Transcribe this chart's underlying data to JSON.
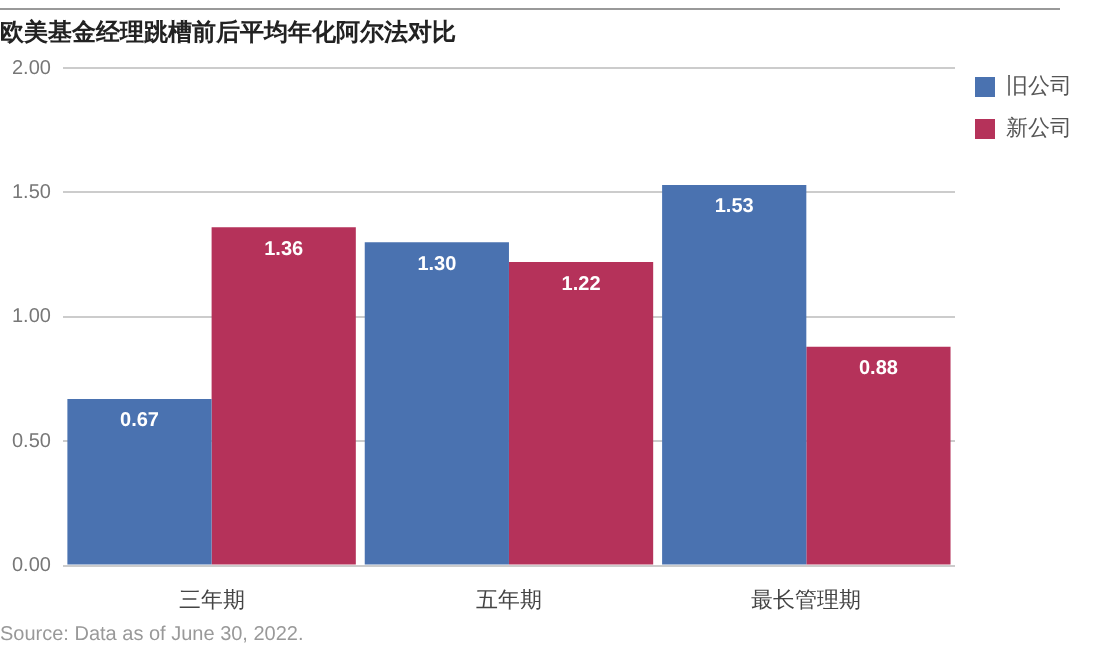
{
  "chart_data": {
    "type": "bar",
    "title": "欧美基金经理跳槽前后平均年化阿尔法对比",
    "categories": [
      "三年期",
      "五年期",
      "最长管理期"
    ],
    "series": [
      {
        "name": "旧公司",
        "color": "#4a72b0",
        "values": [
          0.67,
          1.3,
          1.53
        ],
        "value_labels": [
          "0.67",
          "1.30",
          "1.53"
        ]
      },
      {
        "name": "新公司",
        "color": "#b5325a",
        "values": [
          1.36,
          1.22,
          0.88
        ],
        "value_labels": [
          "1.36",
          "1.22",
          "0.88"
        ]
      }
    ],
    "ylim": [
      0,
      2
    ],
    "yticks": [
      {
        "value": 0,
        "label": "0.00"
      },
      {
        "value": 0.5,
        "label": "0.50"
      },
      {
        "value": 1,
        "label": "1.00"
      },
      {
        "value": 1.5,
        "label": "1.50"
      },
      {
        "value": 2,
        "label": "2.00"
      }
    ],
    "grid": "y",
    "legend": "top right",
    "annotations": [
      "Source: Data as of June 30, 2022."
    ]
  }
}
